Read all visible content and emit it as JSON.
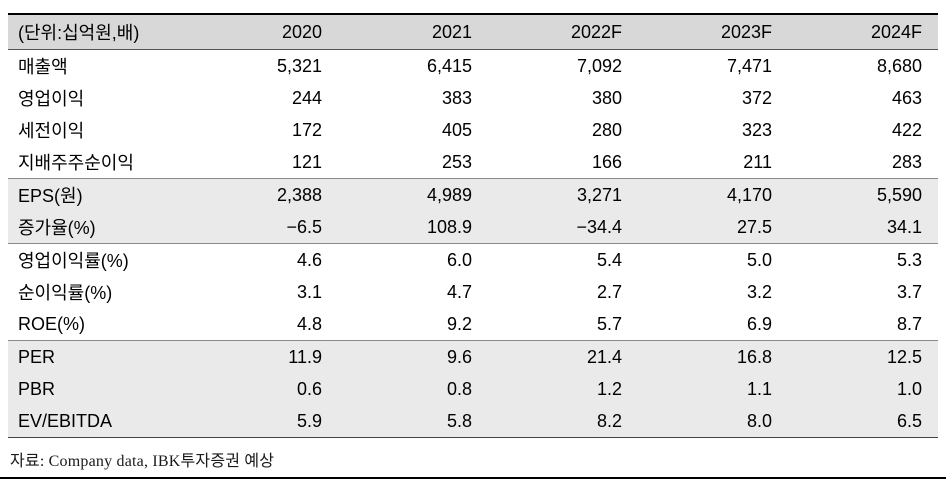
{
  "table": {
    "unit_label": "(단위:십억원,배)",
    "columns": [
      "2020",
      "2021",
      "2022F",
      "2023F",
      "2024F"
    ],
    "rows": [
      {
        "label": "매출액",
        "values": [
          "5,321",
          "6,415",
          "7,092",
          "7,471",
          "8,680"
        ],
        "shaded": false,
        "sep": false
      },
      {
        "label": "영업이익",
        "values": [
          "244",
          "383",
          "380",
          "372",
          "463"
        ],
        "shaded": false,
        "sep": false
      },
      {
        "label": "세전이익",
        "values": [
          "172",
          "405",
          "280",
          "323",
          "422"
        ],
        "shaded": false,
        "sep": false
      },
      {
        "label": "지배주주순이익",
        "values": [
          "121",
          "253",
          "166",
          "211",
          "283"
        ],
        "shaded": false,
        "sep": false
      },
      {
        "label": "EPS(원)",
        "values": [
          "2,388",
          "4,989",
          "3,271",
          "4,170",
          "5,590"
        ],
        "shaded": true,
        "sep": true
      },
      {
        "label": "증가율(%)",
        "values": [
          "−6.5",
          "108.9",
          "−34.4",
          "27.5",
          "34.1"
        ],
        "shaded": true,
        "sep": false
      },
      {
        "label": "영업이익률(%)",
        "values": [
          "4.6",
          "6.0",
          "5.4",
          "5.0",
          "5.3"
        ],
        "shaded": false,
        "sep": true
      },
      {
        "label": "순이익률(%)",
        "values": [
          "3.1",
          "4.7",
          "2.7",
          "3.2",
          "3.7"
        ],
        "shaded": false,
        "sep": false
      },
      {
        "label": "ROE(%)",
        "values": [
          "4.8",
          "9.2",
          "5.7",
          "6.9",
          "8.7"
        ],
        "shaded": false,
        "sep": false
      },
      {
        "label": "PER",
        "values": [
          "11.9",
          "9.6",
          "21.4",
          "16.8",
          "12.5"
        ],
        "shaded": true,
        "sep": true
      },
      {
        "label": "PBR",
        "values": [
          "0.6",
          "0.8",
          "1.2",
          "1.1",
          "1.0"
        ],
        "shaded": true,
        "sep": false
      },
      {
        "label": "EV/EBITDA",
        "values": [
          "5.9",
          "5.8",
          "8.2",
          "8.0",
          "6.5"
        ],
        "shaded": true,
        "sep": false
      }
    ]
  },
  "footer": {
    "source": "자료: Company data, IBK투자증권 예상"
  },
  "colors": {
    "header_bg": "#d8d8d8",
    "shaded_row_bg": "#eaeaea",
    "rule": "#000000"
  }
}
